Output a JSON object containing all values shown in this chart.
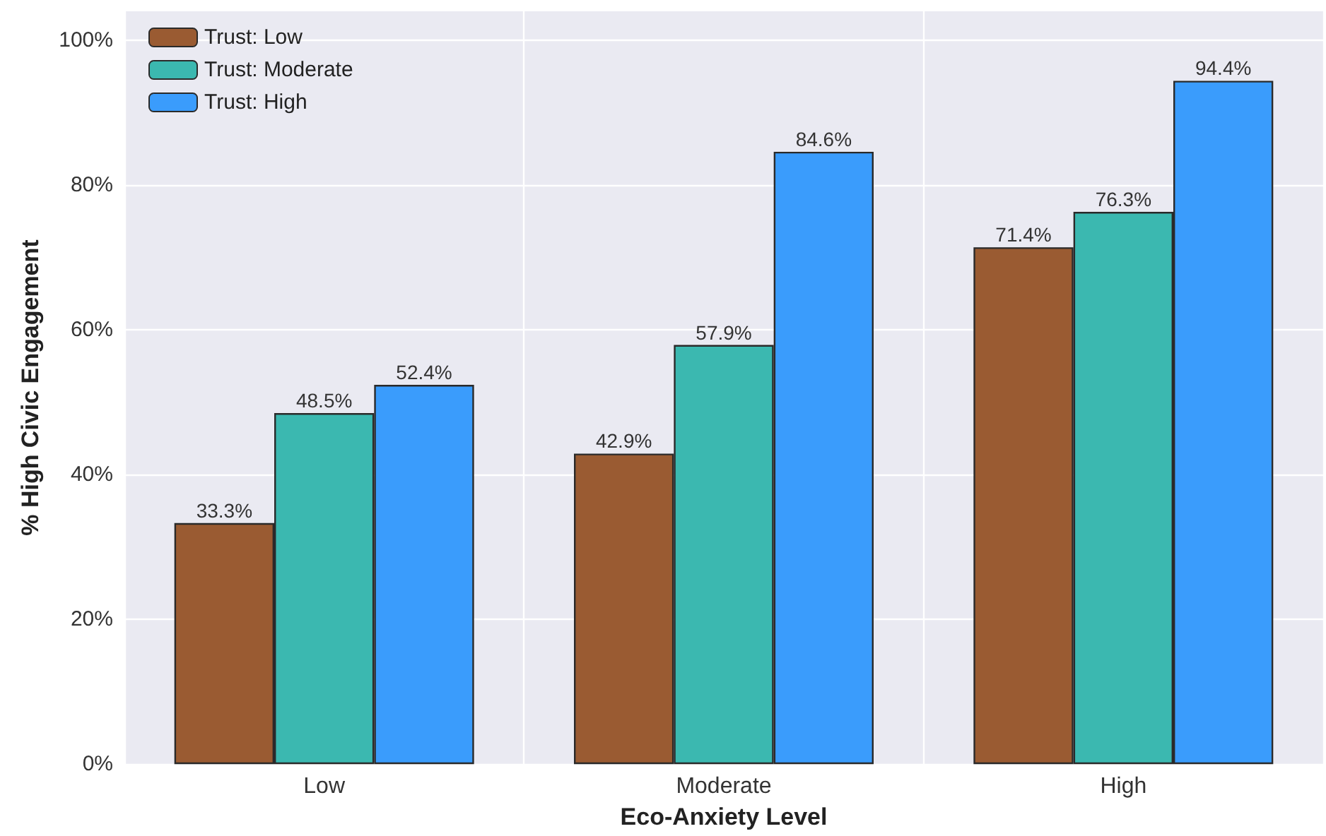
{
  "chart_data": {
    "type": "bar",
    "xlabel": "Eco-Anxiety Level",
    "ylabel": "% High Civic Engagement",
    "categories": [
      "Low",
      "Moderate",
      "High"
    ],
    "series": [
      {
        "name": "Trust: Low",
        "color": "#9a5b32",
        "values": [
          33.3,
          42.9,
          71.4
        ],
        "value_labels": [
          "33.3%",
          "42.9%",
          "71.4%"
        ]
      },
      {
        "name": "Trust: Moderate",
        "color": "#3bb8b0",
        "values": [
          48.5,
          57.9,
          76.3
        ],
        "value_labels": [
          "48.5%",
          "57.9%",
          "76.3%"
        ]
      },
      {
        "name": "Trust: High",
        "color": "#3a9cfc",
        "values": [
          52.4,
          84.6,
          94.4
        ],
        "value_labels": [
          "52.4%",
          "84.6%",
          "94.4%"
        ]
      }
    ],
    "ylim": [
      0,
      104
    ],
    "yticks": [
      {
        "value": 0,
        "label": "0%"
      },
      {
        "value": 20,
        "label": "20%"
      },
      {
        "value": 40,
        "label": "40%"
      },
      {
        "value": 60,
        "label": "60%"
      },
      {
        "value": 80,
        "label": "80%"
      },
      {
        "value": 100,
        "label": "100%"
      }
    ],
    "grid": true,
    "legend": "top left"
  }
}
